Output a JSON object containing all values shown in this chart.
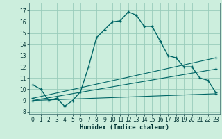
{
  "title": "",
  "xlabel": "Humidex (Indice chaleur)",
  "bg_color": "#cceedd",
  "grid_color": "#99ccbb",
  "line_color": "#006666",
  "xlim": [
    -0.5,
    23.5
  ],
  "ylim": [
    7.8,
    17.7
  ],
  "xticks": [
    0,
    1,
    2,
    3,
    4,
    5,
    6,
    7,
    8,
    9,
    10,
    11,
    12,
    13,
    14,
    15,
    16,
    17,
    18,
    19,
    20,
    21,
    22,
    23
  ],
  "yticks": [
    8,
    9,
    10,
    11,
    12,
    13,
    14,
    15,
    16,
    17
  ],
  "series1_x": [
    0,
    1,
    2,
    3,
    4,
    5,
    6,
    7,
    8,
    9,
    10,
    11,
    12,
    13,
    14,
    15,
    16,
    17,
    18,
    19,
    20,
    21,
    22,
    23
  ],
  "series1_y": [
    10.4,
    10.0,
    9.0,
    9.2,
    8.5,
    9.0,
    9.8,
    12.0,
    14.6,
    15.3,
    16.0,
    16.1,
    16.9,
    16.6,
    15.6,
    15.6,
    14.3,
    13.0,
    12.8,
    12.0,
    12.0,
    11.0,
    10.8,
    9.7
  ],
  "series2_x": [
    0,
    23
  ],
  "series2_y": [
    9.2,
    12.8
  ],
  "series3_x": [
    0,
    23
  ],
  "series3_y": [
    9.0,
    11.8
  ],
  "series4_x": [
    0,
    23
  ],
  "series4_y": [
    9.0,
    9.6
  ],
  "tick_fontsize": 5.5,
  "xlabel_fontsize": 6.5
}
